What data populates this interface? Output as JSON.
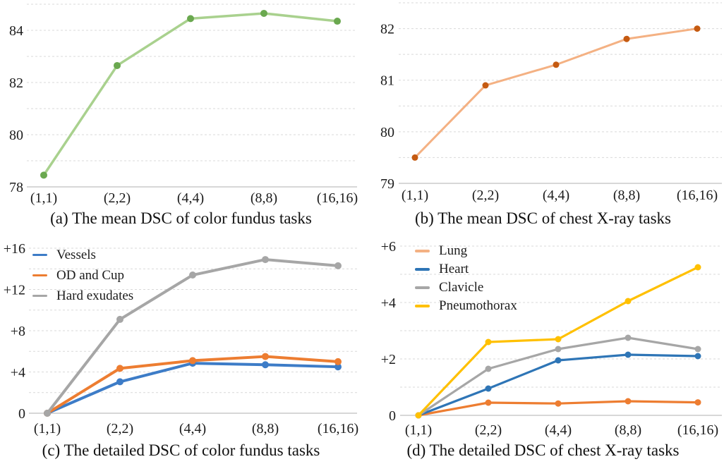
{
  "figure_title": "",
  "colors": {
    "grid": "#d9d9d9",
    "axis": "#bfbfbf",
    "text": "#1c1c1c",
    "green_line": "#a9d18e",
    "green_marker": "#6aa84f",
    "salmon_line": "#f4b183",
    "salmon_marker": "#c55a11",
    "blue": "#3d7cc7",
    "orange": "#ed7d31",
    "gray": "#a6a6a6",
    "yellow": "#ffc000"
  },
  "chart_data": [
    {
      "id": "a",
      "type": "line",
      "caption": "(a) The mean DSC of color fundus tasks",
      "xlabel": "",
      "ylabel": "",
      "categories": [
        "(1,1)",
        "(2,2)",
        "(4,4)",
        "(8,8)",
        "(16,16)"
      ],
      "ylim": [
        78,
        85
      ],
      "grid_step": 1,
      "grid": "dashed-horizontal",
      "yticks": [
        {
          "v": 78,
          "label": "78"
        },
        {
          "v": 80,
          "label": "80"
        },
        {
          "v": 82,
          "label": "82"
        },
        {
          "v": 84,
          "label": "84"
        }
      ],
      "legend": null,
      "series": [
        {
          "name": "Mean DSC (color fundus)",
          "line_color": "#a9d18e",
          "marker_color": "#6aa84f",
          "values": [
            78.45,
            82.65,
            84.45,
            84.65,
            84.35
          ]
        }
      ]
    },
    {
      "id": "b",
      "type": "line",
      "caption": "(b) The mean DSC of chest X-ray tasks",
      "xlabel": "",
      "ylabel": "",
      "categories": [
        "(1,1)",
        "(2,2)",
        "(4,4)",
        "(8,8)",
        "(16,16)"
      ],
      "ylim": [
        79,
        82.5
      ],
      "grid_step": 0.5,
      "grid": "dashed-horizontal",
      "yticks": [
        {
          "v": 79,
          "label": "79"
        },
        {
          "v": 80,
          "label": "80"
        },
        {
          "v": 81,
          "label": "81"
        },
        {
          "v": 82,
          "label": "82"
        }
      ],
      "legend": null,
      "series": [
        {
          "name": "Mean DSC (chest X-ray)",
          "line_color": "#f4b183",
          "marker_color": "#c55a11",
          "values": [
            79.5,
            80.9,
            81.3,
            81.8,
            82.0
          ]
        }
      ]
    },
    {
      "id": "c",
      "type": "line",
      "caption": "(c) The detailed DSC of color fundus tasks",
      "xlabel": "",
      "ylabel": "",
      "categories": [
        "(1,1)",
        "(2,2)",
        "(4,4)",
        "(8,8)",
        "(16,16)"
      ],
      "ylim": [
        0,
        16
      ],
      "grid_step": 2,
      "grid": "dashed-horizontal",
      "yticks": [
        {
          "v": 0,
          "label": "0"
        },
        {
          "v": 4,
          "label": "+4"
        },
        {
          "v": 8,
          "label": "+8"
        },
        {
          "v": 12,
          "label": "+12"
        },
        {
          "v": 16,
          "label": "+16"
        }
      ],
      "legend": {
        "position": "top-left"
      },
      "series": [
        {
          "name": "Vessels",
          "line_color": "#3d7cc7",
          "marker_color": "#3d7cc7",
          "values": [
            0,
            3.05,
            4.85,
            4.7,
            4.5
          ]
        },
        {
          "name": "OD and Cup",
          "line_color": "#ed7d31",
          "marker_color": "#ed7d31",
          "values": [
            0,
            4.35,
            5.1,
            5.5,
            5.0
          ]
        },
        {
          "name": "Hard exudates",
          "line_color": "#a6a6a6",
          "marker_color": "#a6a6a6",
          "values": [
            0,
            9.1,
            13.4,
            14.9,
            14.3
          ]
        }
      ]
    },
    {
      "id": "d",
      "type": "line",
      "caption": "(d) The detailed DSC of chest X-ray tasks",
      "xlabel": "",
      "ylabel": "",
      "categories": [
        "(1,1)",
        "(2,2)",
        "(4,4)",
        "(8,8)",
        "(16,16)"
      ],
      "ylim": [
        0,
        6
      ],
      "grid_step": 1,
      "grid": "dashed-horizontal",
      "yticks": [
        {
          "v": 0,
          "label": "0"
        },
        {
          "v": 2,
          "label": "+2"
        },
        {
          "v": 4,
          "label": "+4"
        },
        {
          "v": 6,
          "label": "+6"
        }
      ],
      "legend": {
        "position": "top-left"
      },
      "series": [
        {
          "name": "Lung",
          "line_color": "#ed7d31",
          "marker_color": "#ed7d31",
          "legend_color": "#f4b183",
          "values": [
            0,
            0.45,
            0.42,
            0.5,
            0.46
          ]
        },
        {
          "name": "Heart",
          "line_color": "#2e75b6",
          "marker_color": "#2e75b6",
          "values": [
            0,
            0.95,
            1.95,
            2.15,
            2.1
          ]
        },
        {
          "name": "Clavicle",
          "line_color": "#a6a6a6",
          "marker_color": "#a6a6a6",
          "values": [
            0,
            1.65,
            2.35,
            2.75,
            2.35
          ]
        },
        {
          "name": "Pneumothorax",
          "line_color": "#ffc000",
          "marker_color": "#ffc000",
          "values": [
            0,
            2.6,
            2.7,
            4.05,
            5.25
          ]
        }
      ]
    }
  ]
}
